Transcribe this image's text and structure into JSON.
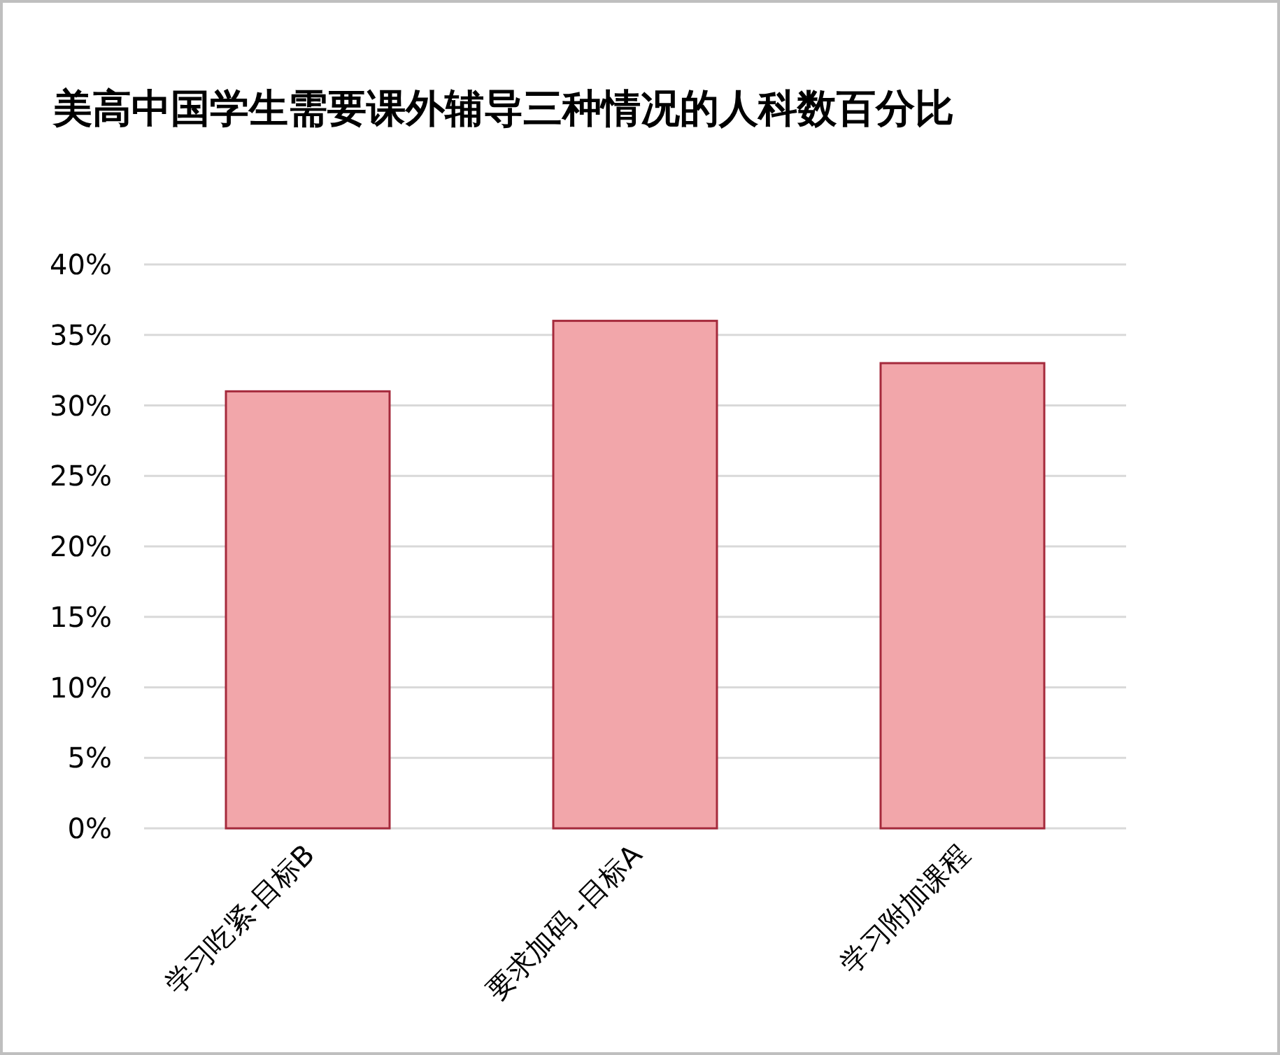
{
  "chart_data": {
    "type": "bar",
    "title": "美高中国学生需要课外辅导三种情况的人科数百分比",
    "categories": [
      "学习吃紧-目标B",
      "要求加码 -目标A",
      "学习附加课程"
    ],
    "values": [
      31,
      36,
      33
    ],
    "color": "#f2a6aa",
    "ylim": [
      0,
      40
    ],
    "yticks": [
      {
        "value": 0,
        "label": "0%"
      },
      {
        "value": 5,
        "label": "5%"
      },
      {
        "value": 10,
        "label": "10%"
      },
      {
        "value": 15,
        "label": "15%"
      },
      {
        "value": 20,
        "label": "20%"
      },
      {
        "value": 25,
        "label": "25%"
      },
      {
        "value": 30,
        "label": "30%"
      },
      {
        "value": 35,
        "label": "35%"
      },
      {
        "value": 40,
        "label": "40%"
      }
    ],
    "grid": "y"
  }
}
